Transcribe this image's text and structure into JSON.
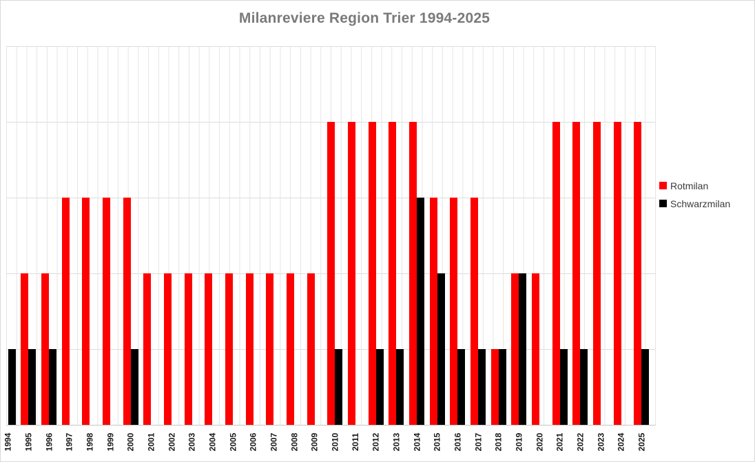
{
  "chart_data": {
    "type": "bar",
    "title": "Milanreviere Region Trier 1994-2025",
    "categories": [
      "1994",
      "1995",
      "1996",
      "1997",
      "1998",
      "1999",
      "2000",
      "2001",
      "2002",
      "2003",
      "2004",
      "2005",
      "2006",
      "2007",
      "2008",
      "2009",
      "2010",
      "2011",
      "2012",
      "2013",
      "2014",
      "2015",
      "2016",
      "2017",
      "2018",
      "2019",
      "2020",
      "2021",
      "2022",
      "2023",
      "2024",
      "2025"
    ],
    "series": [
      {
        "name": "Rotmilan",
        "color": "#FF0000",
        "values": [
          0,
          2,
          2,
          3,
          3,
          3,
          3,
          2,
          2,
          2,
          2,
          2,
          2,
          2,
          2,
          2,
          4,
          4,
          4,
          4,
          4,
          3,
          3,
          3,
          1,
          2,
          2,
          4,
          4,
          4,
          4,
          4
        ]
      },
      {
        "name": "Schwarzmilan",
        "color": "#000000",
        "values": [
          1,
          1,
          1,
          0,
          0,
          0,
          1,
          0,
          0,
          0,
          0,
          0,
          0,
          0,
          0,
          0,
          1,
          0,
          1,
          1,
          3,
          2,
          1,
          1,
          1,
          2,
          0,
          1,
          1,
          0,
          0,
          1
        ]
      }
    ],
    "xlabel": "",
    "ylabel": "",
    "ylim": [
      0,
      5
    ],
    "y_gridline_step": 1,
    "y_axis_tick_labels": "none",
    "grid": {
      "horizontal": true,
      "vertical": true
    },
    "legend_position": "right",
    "bar_layout": "grouped",
    "styles": {
      "title_color": "#7A7A7A",
      "horizontal_grid_color": "#DCDCDC",
      "vertical_grid_color": "#E4E4E4",
      "axis_line_color": "#C6C6C6",
      "x_label_color": "#1A1A1A",
      "legend_text_color": "#3B3B3B",
      "chart_border_color": "#D9D9D9",
      "background": "#FFFFFF"
    }
  }
}
